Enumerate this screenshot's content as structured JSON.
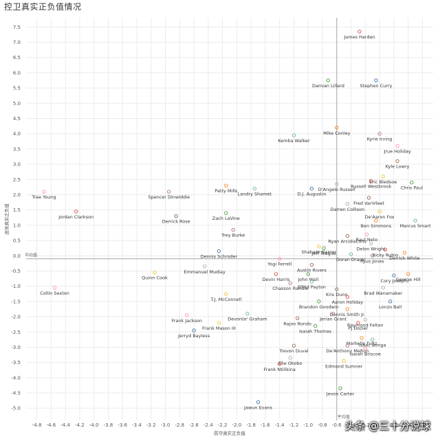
{
  "title": "控卫真实正负值情况",
  "watermark": "头条 @三十分说球",
  "colors": {
    "grid": "#ebebeb",
    "ref_line": "#a6a6a6",
    "palette": [
      "#e15759",
      "#59a14f",
      "#4e79a7",
      "#f28e2b",
      "#76b7b2",
      "#b07aa1",
      "#ff9da7",
      "#9c755f",
      "#bab0ac",
      "#edc948"
    ]
  },
  "chart_data": {
    "type": "scatter",
    "title": "控卫真实正负值情况",
    "xlabel": "防守真实正负值",
    "ylabel": "进攻真实正负值",
    "xlim": [
      -4.95,
      0.75
    ],
    "ylim": [
      -5.4,
      7.8
    ],
    "x_ticks": [
      -4.8,
      -4.6,
      -4.4,
      -4.2,
      -4.0,
      -3.8,
      -3.6,
      -3.4,
      -3.2,
      -3.0,
      -2.8,
      -2.6,
      -2.4,
      -2.2,
      -2.0,
      -1.8,
      -1.6,
      -1.4,
      -1.2,
      -1.0,
      -0.8,
      -0.6,
      -0.4,
      -0.2,
      0.0,
      0.2,
      0.4,
      0.6
    ],
    "y_ticks": [
      -5.0,
      -4.5,
      -4.0,
      -3.5,
      -3.0,
      -2.5,
      -2.0,
      -1.5,
      -1.0,
      -0.5,
      0.0,
      0.5,
      1.0,
      1.5,
      2.0,
      2.5,
      3.0,
      3.5,
      4.0,
      4.5,
      5.0,
      5.5,
      6.0,
      6.5,
      7.0,
      7.5
    ],
    "grid": true,
    "reference_lines": {
      "x": -0.6,
      "x_label": "平均值",
      "y": -0.1,
      "y_label": "平均值"
    },
    "points": [
      {
        "name": "James Harden",
        "x": -0.28,
        "y": 7.35
      },
      {
        "name": "Damian Lillard",
        "x": -0.72,
        "y": 5.75
      },
      {
        "name": "Stephen Curry",
        "x": -0.05,
        "y": 5.75
      },
      {
        "name": "Mike Conley",
        "x": -0.6,
        "y": 4.2
      },
      {
        "name": "Kemba Walker",
        "x": -1.2,
        "y": 3.95
      },
      {
        "name": "Kyrie Irving",
        "x": 0.0,
        "y": 4.0
      },
      {
        "name": "Jrue Holiday",
        "x": 0.25,
        "y": 3.6
      },
      {
        "name": "Kyle Lowry",
        "x": 0.25,
        "y": 3.1
      },
      {
        "name": "D'Angelo Russell",
        "x": -0.6,
        "y": 2.35
      },
      {
        "name": "Eric Bledsoe",
        "x": 0.05,
        "y": 2.6
      },
      {
        "name": "Russell Westbrook",
        "x": -0.12,
        "y": 2.45
      },
      {
        "name": "Chris Paul",
        "x": 0.45,
        "y": 2.4
      },
      {
        "name": "D.J. Augustin",
        "x": -0.95,
        "y": 2.2
      },
      {
        "name": "Patty Mills",
        "x": -2.15,
        "y": 2.3
      },
      {
        "name": "Landry Shamet",
        "x": -1.75,
        "y": 2.2
      },
      {
        "name": "Spencer Dinwiddie",
        "x": -2.95,
        "y": 2.1
      },
      {
        "name": "Trae Young",
        "x": -4.7,
        "y": 2.1
      },
      {
        "name": "Fred VanVleet",
        "x": -0.15,
        "y": 1.9
      },
      {
        "name": "Darren Collison",
        "x": -0.45,
        "y": 1.7
      },
      {
        "name": "De'Aaron Fox",
        "x": 0.0,
        "y": 1.45
      },
      {
        "name": "Jordan Clarkson",
        "x": -4.25,
        "y": 1.45
      },
      {
        "name": "Zach LaVine",
        "x": -2.15,
        "y": 1.4
      },
      {
        "name": "Derrick Rose",
        "x": -2.85,
        "y": 1.3
      },
      {
        "name": "Ben Simmons",
        "x": -0.05,
        "y": 1.15
      },
      {
        "name": "Marcus Smart",
        "x": 0.5,
        "y": 1.15
      },
      {
        "name": "Trey Burke",
        "x": -2.05,
        "y": 0.85
      },
      {
        "name": "Raul Neto",
        "x": -0.18,
        "y": 0.7
      },
      {
        "name": "Ryan Arcidiacono",
        "x": -0.45,
        "y": 0.65
      },
      {
        "name": "Delon Wright",
        "x": -0.12,
        "y": 0.4
      },
      {
        "name": "Shabazz Napier",
        "x": -0.85,
        "y": 0.3
      },
      {
        "name": "Ricky Rubio",
        "x": 0.08,
        "y": 0.2
      },
      {
        "name": "Jeff Teague",
        "x": -0.78,
        "y": 0.25
      },
      {
        "name": "Dennis Schroder",
        "x": -2.25,
        "y": 0.15
      },
      {
        "name": "Derrick White",
        "x": 0.35,
        "y": 0.1
      },
      {
        "name": "Goran Dragic",
        "x": -0.4,
        "y": 0.05
      },
      {
        "name": "Tyus Jones",
        "x": -0.1,
        "y": 0.0
      },
      {
        "name": "Yogi Ferrell",
        "x": -1.4,
        "y": -0.1
      },
      {
        "name": "Austin Rivers",
        "x": -0.95,
        "y": -0.3
      },
      {
        "name": "Emmanuel Mudiay",
        "x": -2.45,
        "y": -0.35
      },
      {
        "name": "Quinn Cook",
        "x": -3.15,
        "y": -0.55
      },
      {
        "name": "Devin Harris",
        "x": -1.45,
        "y": -0.6
      },
      {
        "name": "John Wall",
        "x": -1.0,
        "y": -0.6
      },
      {
        "name": "Cory Joseph",
        "x": 0.2,
        "y": -0.65
      },
      {
        "name": "George Hill",
        "x": 0.4,
        "y": -0.6
      },
      {
        "name": "Elfrid Payton",
        "x": -0.95,
        "y": -0.85
      },
      {
        "name": "Chasson Randle",
        "x": -1.25,
        "y": -0.9
      },
      {
        "name": "Collin Sexton",
        "x": -4.55,
        "y": -1.05
      },
      {
        "name": "Kris Dunn",
        "x": -0.6,
        "y": -1.1
      },
      {
        "name": "Brad Wanamaker",
        "x": 0.05,
        "y": -1.05
      },
      {
        "name": "T.J. McConnell",
        "x": -2.15,
        "y": -1.25
      },
      {
        "name": "Aaron Holiday",
        "x": -0.45,
        "y": -1.35
      },
      {
        "name": "Brandon Goodwin",
        "x": -0.85,
        "y": -1.5
      },
      {
        "name": "Lonzo Ball",
        "x": 0.15,
        "y": -1.5
      },
      {
        "name": "Dennis Smith Jr.",
        "x": -0.45,
        "y": -1.75
      },
      {
        "name": "Devonte' Graham",
        "x": -1.85,
        "y": -1.9
      },
      {
        "name": "Jerian Grant",
        "x": -0.65,
        "y": -1.9
      },
      {
        "name": "Frank Jackson",
        "x": -2.7,
        "y": -1.95
      },
      {
        "name": "Rajon Rondo",
        "x": -1.15,
        "y": -2.05
      },
      {
        "name": "Raymond Felton",
        "x": -0.2,
        "y": -2.1
      },
      {
        "name": "Frank Mason III",
        "x": -2.25,
        "y": -2.2
      },
      {
        "name": "PJ Dozier",
        "x": -0.3,
        "y": -2.2
      },
      {
        "name": "Isaiah Thomas",
        "x": -0.9,
        "y": -2.3
      },
      {
        "name": "Jerryd Bayless",
        "x": -2.6,
        "y": -2.45
      },
      {
        "name": "Markelle Fultz",
        "x": -0.25,
        "y": -2.7
      },
      {
        "name": "Isaac Bonga",
        "x": -0.1,
        "y": -2.75
      },
      {
        "name": "De'Anthony Melton",
        "x": -0.45,
        "y": -2.95
      },
      {
        "name": "Isaiah Briscoe",
        "x": -0.2,
        "y": -3.05
      },
      {
        "name": "Trevon Duval",
        "x": -1.2,
        "y": -2.95
      },
      {
        "name": "Elie Okobo",
        "x": -1.25,
        "y": -3.35
      },
      {
        "name": "Edmond Sumner",
        "x": -0.5,
        "y": -3.45
      },
      {
        "name": "Frank Ntilikina",
        "x": -1.4,
        "y": -3.55
      },
      {
        "name": "Jevon Carter",
        "x": -0.55,
        "y": -4.35
      },
      {
        "name": "Jawun Evans",
        "x": -1.7,
        "y": -4.8
      }
    ]
  }
}
